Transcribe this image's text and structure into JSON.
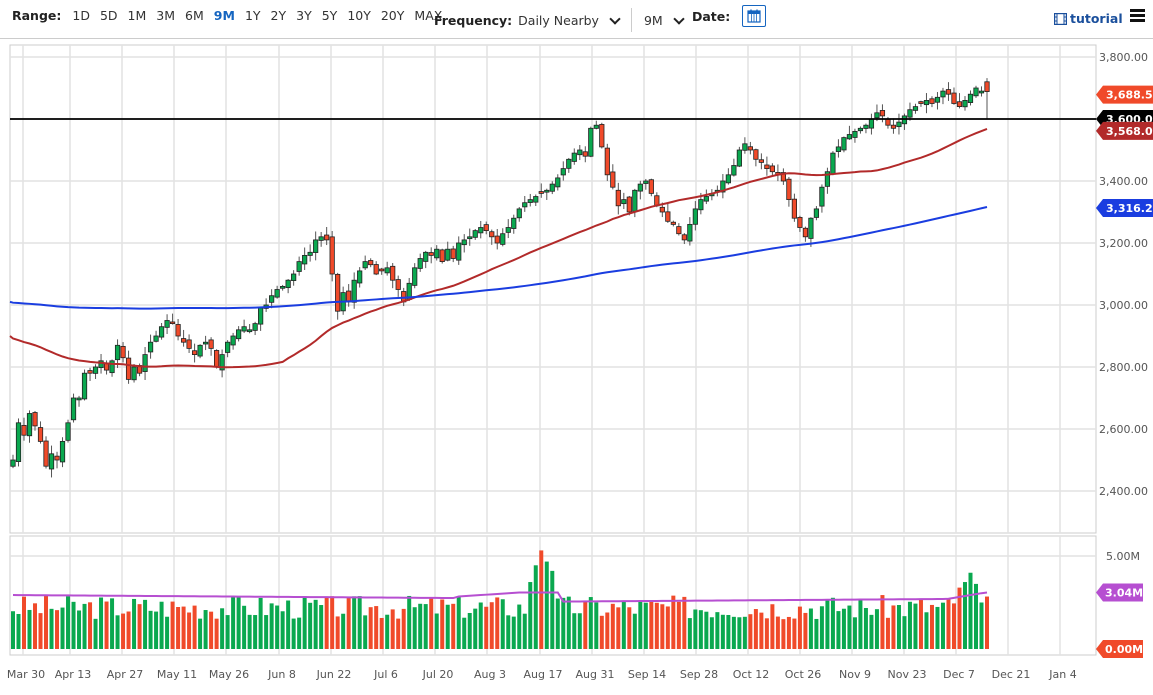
{
  "toolbar": {
    "range_label": "Range:",
    "ranges": [
      "1D",
      "5D",
      "1M",
      "3M",
      "6M",
      "9M",
      "1Y",
      "2Y",
      "3Y",
      "5Y",
      "10Y",
      "20Y",
      "MAX"
    ],
    "active_range": "9M",
    "frequency_label": "Frequency:",
    "frequency_value": "Daily Nearby",
    "period_value": "9M",
    "date_label": "Date:",
    "tutorial_label": "tutorial"
  },
  "colors": {
    "up": "#0aa84f",
    "down": "#f04a2a",
    "ma50": "#b22a2a",
    "ma200": "#1a3de0",
    "vol_avg": "#b64fd1",
    "hline": "#000000",
    "accent": "#1565c0"
  },
  "chart_data": {
    "type": "candlestick",
    "title": "",
    "price_axis": {
      "min": 2400,
      "max": 3800,
      "ticks": [
        "3,800.00",
        "3,600.00",
        "3,400.00",
        "3,200.00",
        "3,000.00",
        "2,800.00",
        "2,600.00",
        "2,400.00"
      ]
    },
    "volume_axis": {
      "ticks": [
        "5.00M",
        "0.00M"
      ]
    },
    "x_tick_labels": [
      "Mar 30",
      "Apr 13",
      "Apr 27",
      "May 11",
      "May 26",
      "Jun 8",
      "Jun 22",
      "Jul 6",
      "Jul 20",
      "Aug 3",
      "Aug 17",
      "Aug 31",
      "Sep 14",
      "Sep 28",
      "Oct 12",
      "Oct 26",
      "Nov 9",
      "Nov 23",
      "Dec 7",
      "Dec 21",
      "Jan 4"
    ],
    "horizontal_line": {
      "value": 3600.0,
      "label": "3,600.00"
    },
    "price_tags": [
      {
        "label": "3,688.50",
        "value": 3688.5,
        "color": "#f04a2a",
        "series": "last close"
      },
      {
        "label": "3,600.00",
        "value": 3600.0,
        "color": "#000000",
        "series": "horizontal line"
      },
      {
        "label": "3,568.03",
        "value": 3568.03,
        "color": "#b22a2a",
        "series": "50-day MA"
      },
      {
        "label": "3,316.21",
        "value": 3316.21,
        "color": "#1a3de0",
        "series": "200-day MA"
      }
    ],
    "volume_tags": [
      {
        "label": "3.04M",
        "value": 3.04,
        "color": "#b64fd1",
        "series": "volume average"
      },
      {
        "label": "0.00M",
        "value": 0.0,
        "color": "#f04a2a",
        "series": "last volume"
      }
    ],
    "closes_approx": [
      2500,
      2620,
      2580,
      2650,
      2610,
      2560,
      2480,
      2520,
      2500,
      2560,
      2620,
      2700,
      2700,
      2780,
      2780,
      2800,
      2820,
      2790,
      2820,
      2870,
      2830,
      2760,
      2800,
      2780,
      2840,
      2880,
      2900,
      2930,
      2950,
      2940,
      2900,
      2880,
      2860,
      2840,
      2870,
      2880,
      2860,
      2800,
      2840,
      2880,
      2900,
      2920,
      2930,
      2920,
      2940,
      2990,
      3000,
      3030,
      3050,
      3060,
      3080,
      3100,
      3140,
      3160,
      3170,
      3210,
      3220,
      3210,
      3100,
      2980,
      3040,
      3010,
      3080,
      3110,
      3140,
      3130,
      3100,
      3110,
      3120,
      3080,
      3050,
      3010,
      3070,
      3120,
      3150,
      3170,
      3160,
      3180,
      3140,
      3180,
      3150,
      3200,
      3210,
      3220,
      3240,
      3250,
      3240,
      3220,
      3200,
      3230,
      3250,
      3280,
      3310,
      3330,
      3340,
      3350,
      3360,
      3370,
      3390,
      3410,
      3440,
      3470,
      3490,
      3500,
      3480,
      3570,
      3580,
      3510,
      3420,
      3380,
      3320,
      3340,
      3300,
      3370,
      3390,
      3400,
      3360,
      3320,
      3300,
      3270,
      3260,
      3230,
      3210,
      3260,
      3310,
      3340,
      3350,
      3360,
      3370,
      3400,
      3420,
      3450,
      3500,
      3520,
      3500,
      3470,
      3460,
      3440,
      3430,
      3420,
      3400,
      3340,
      3280,
      3250,
      3220,
      3280,
      3310,
      3380,
      3430,
      3490,
      3510,
      3540,
      3550,
      3560,
      3570,
      3580,
      3600,
      3620,
      3610,
      3580,
      3570,
      3590,
      3610,
      3630,
      3640,
      3650,
      3660,
      3650,
      3670,
      3690,
      3680,
      3650,
      3640,
      3660,
      3680,
      3700,
      3690,
      3688.5
    ],
    "ma50_approx_start": 2900,
    "ma200_approx_start": 3010,
    "legend": []
  }
}
